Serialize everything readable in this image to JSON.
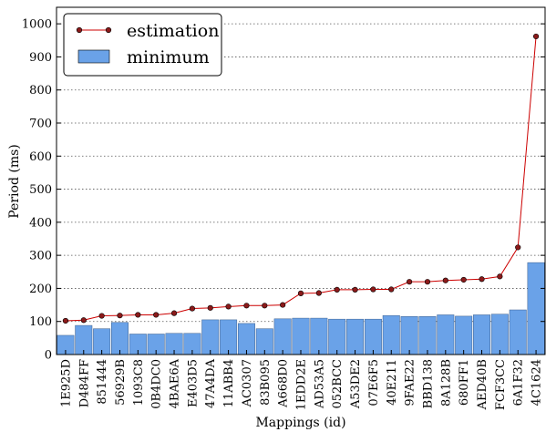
{
  "chart_data": {
    "type": "bar",
    "xlabel": "Mappings (id)",
    "ylabel": "Period (ms)",
    "ylim": [
      0,
      1050
    ],
    "yticks": [
      0,
      100,
      200,
      300,
      400,
      500,
      600,
      700,
      800,
      900,
      1000
    ],
    "grid": "horizontal dotted",
    "legend_position": "top-left",
    "categories": [
      "1E925D",
      "D484FF",
      "851444",
      "56929B",
      "1093C8",
      "0B4DC0",
      "4BAE6A",
      "E403D5",
      "47A4DA",
      "11ABB4",
      "AC0307",
      "83B095",
      "A668D0",
      "1EDD2E",
      "AD53A5",
      "052BCC",
      "A53DE2",
      "07E6F5",
      "40E211",
      "9FAE22",
      "BBD138",
      "8A128B",
      "680FF1",
      "AED40B",
      "FCF3CC",
      "6A1F32",
      "4C1624"
    ],
    "series": [
      {
        "name": "estimation",
        "type": "line",
        "color": "#cc0000",
        "marker_color": "#8b1a1a",
        "values": [
          102,
          104,
          117,
          118,
          120,
          120,
          125,
          139,
          141,
          145,
          148,
          148,
          150,
          185,
          186,
          196,
          196,
          197,
          197,
          220,
          220,
          224,
          226,
          228,
          236,
          324,
          962
        ]
      },
      {
        "name": "minimum",
        "type": "bar",
        "color": "#6aa2e8",
        "values": [
          58,
          88,
          78,
          97,
          62,
          62,
          64,
          64,
          105,
          105,
          94,
          78,
          108,
          110,
          110,
          107,
          107,
          107,
          118,
          115,
          115,
          120,
          116,
          120,
          122,
          135,
          278
        ]
      }
    ]
  }
}
